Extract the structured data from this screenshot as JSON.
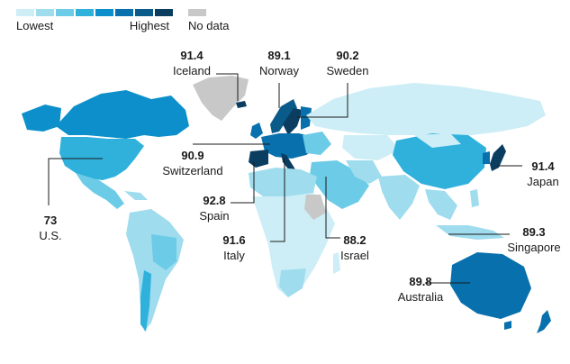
{
  "legend": {
    "low_label": "Lowest",
    "high_label": "Highest",
    "nodata_label": "No data",
    "scale_colors": [
      "#cdeef6",
      "#9fdcee",
      "#6ccbe6",
      "#2fb1dc",
      "#0c8fca",
      "#0870ac",
      "#0a5a8a",
      "#0b3d61"
    ],
    "nodata_color": "#c8c8c8"
  },
  "colors": {
    "ocean": "#ffffff",
    "leader_line": "#1a1a1a"
  },
  "annotations": [
    {
      "value": "91.4",
      "name": "Iceland"
    },
    {
      "value": "89.1",
      "name": "Norway"
    },
    {
      "value": "90.2",
      "name": "Sweden"
    },
    {
      "value": "90.9",
      "name": "Switzerland"
    },
    {
      "value": "92.8",
      "name": "Spain"
    },
    {
      "value": "91.6",
      "name": "Italy"
    },
    {
      "value": "88.2",
      "name": "Israel"
    },
    {
      "value": "91.4",
      "name": "Japan"
    },
    {
      "value": "89.3",
      "name": "Singapore"
    },
    {
      "value": "89.8",
      "name": "Australia"
    },
    {
      "value": "73",
      "name": "U.S."
    }
  ]
}
